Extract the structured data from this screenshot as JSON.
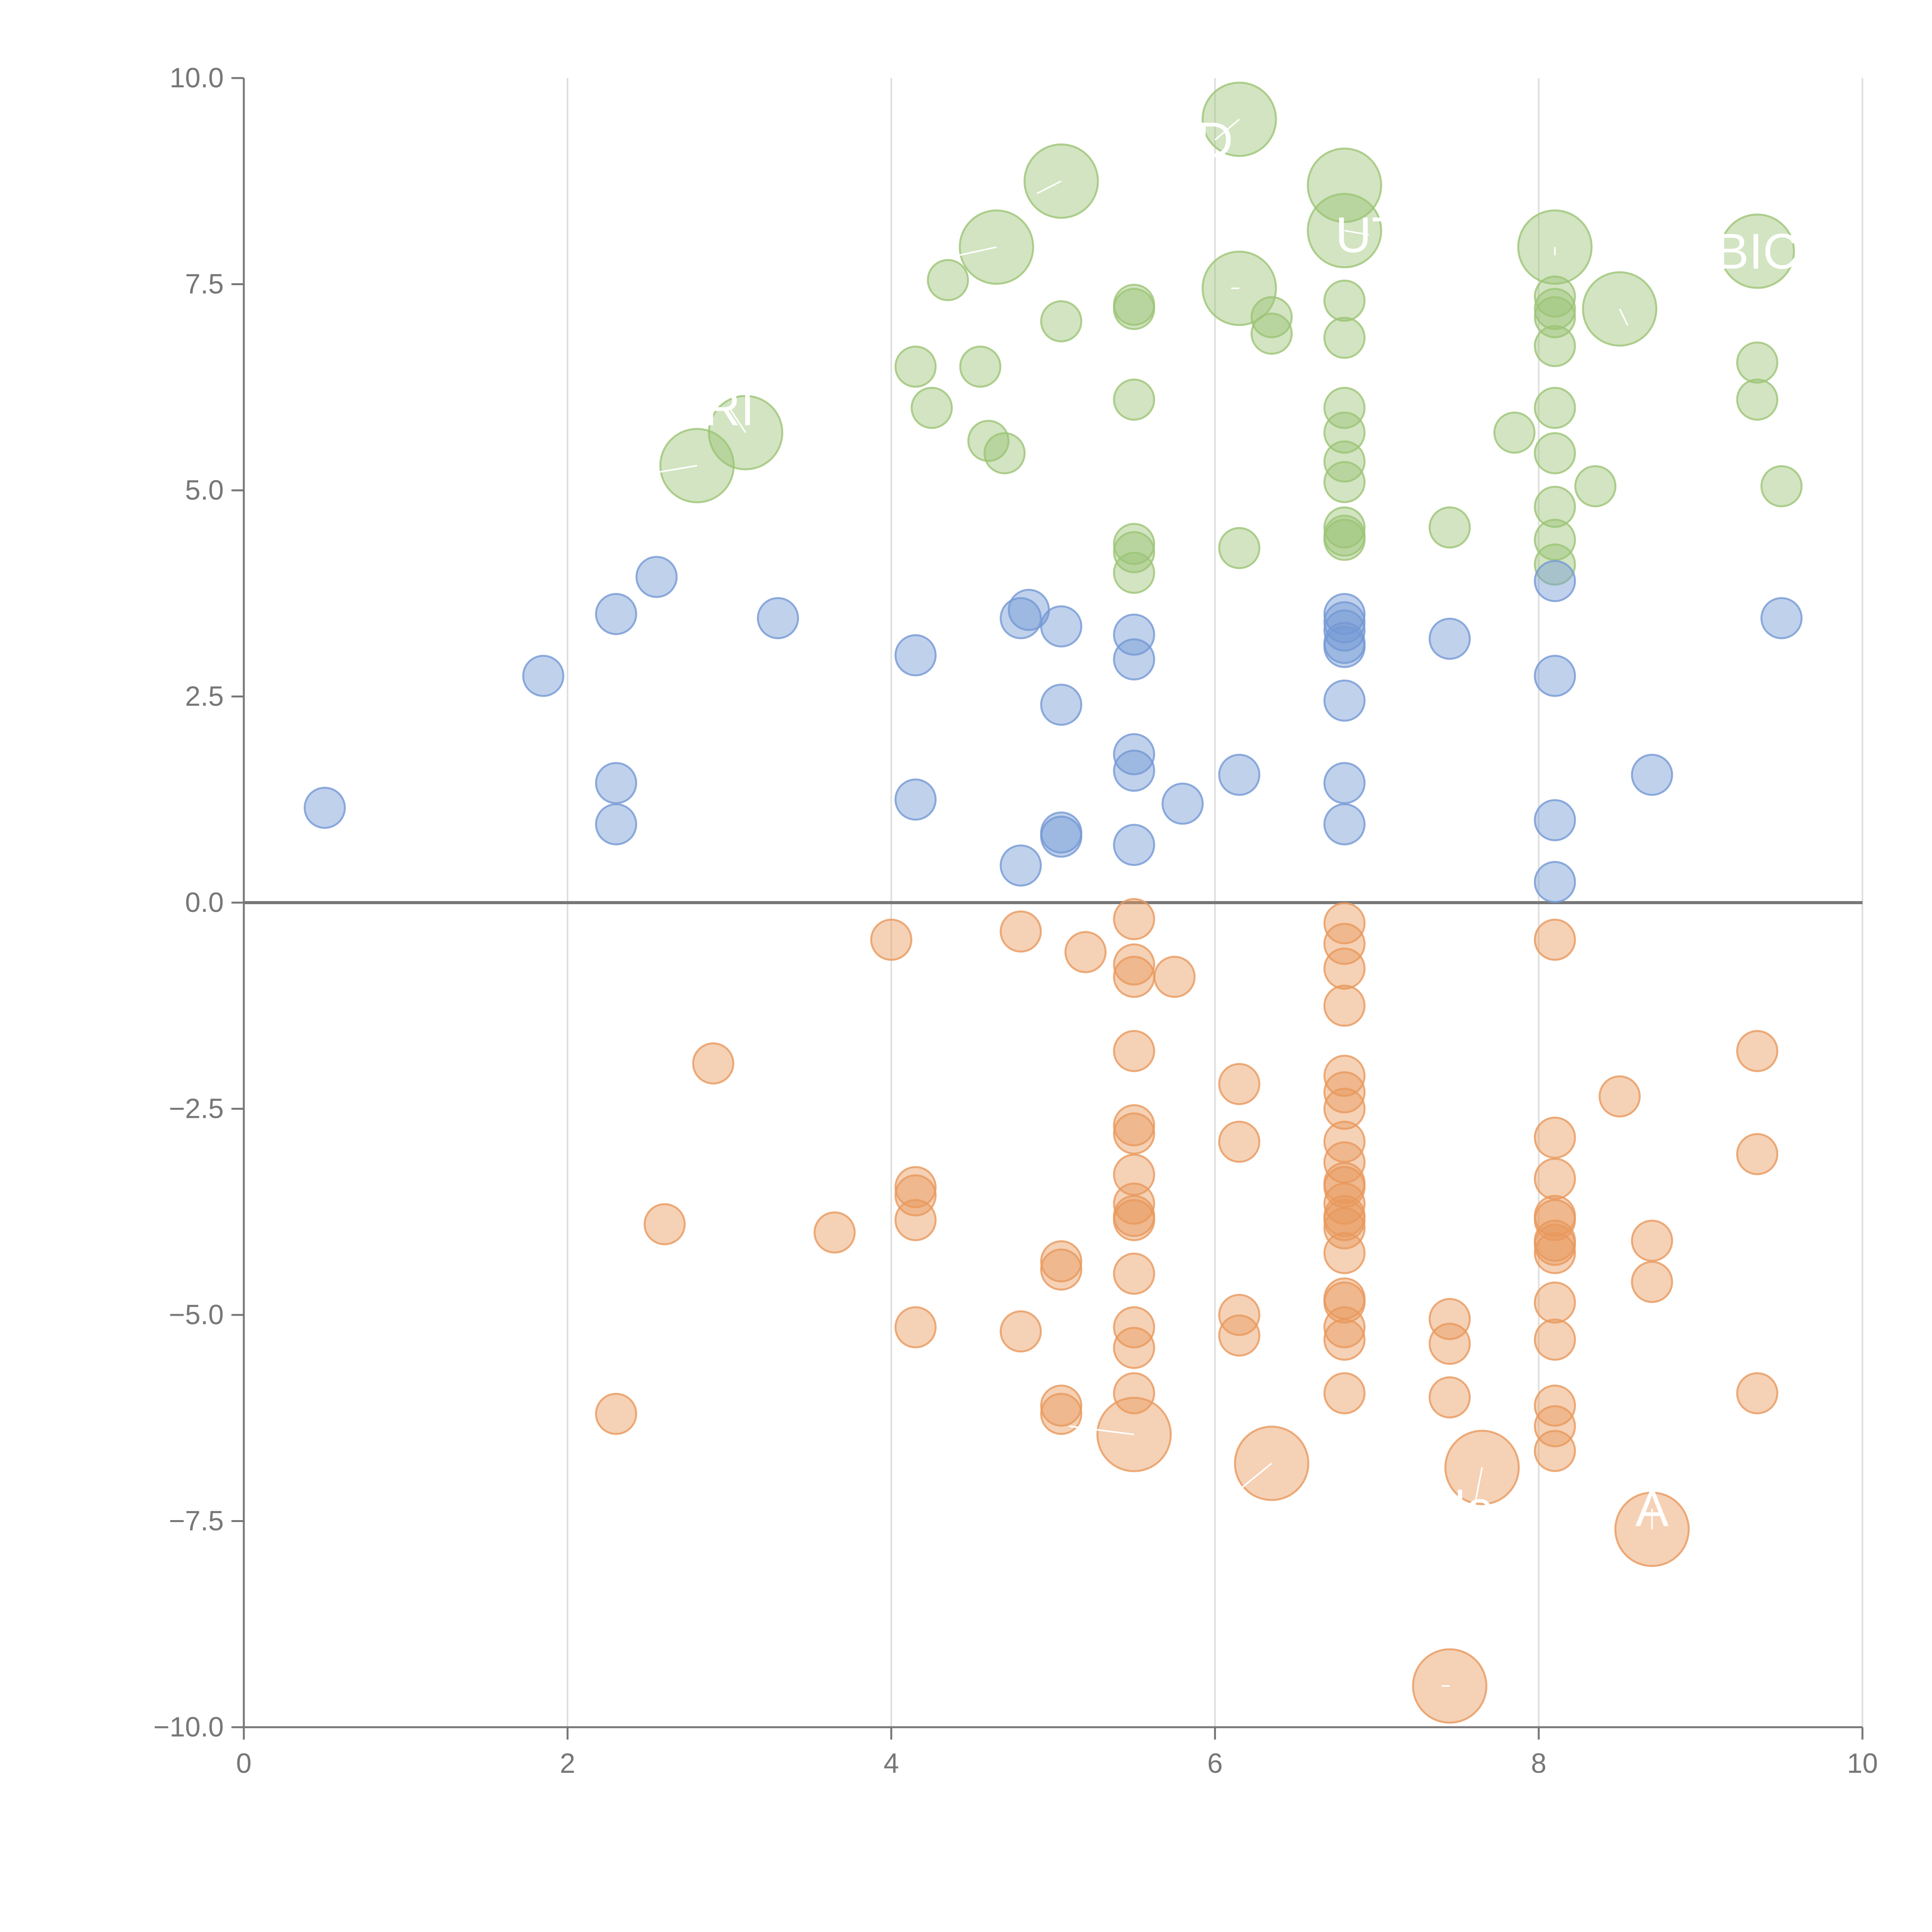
{
  "chart_data": {
    "type": "scatter",
    "title": "",
    "xlabel": "",
    "ylabel": "",
    "xlim": [
      0,
      10
    ],
    "ylim": [
      -10,
      10
    ],
    "x_ticks": [
      "0",
      "2",
      "4",
      "6",
      "8",
      "10"
    ],
    "y_ticks": [
      "10.0",
      "7.5",
      "5.0",
      "2.5",
      "0.0",
      "−2.5",
      "−5.0",
      "−7.5",
      "−10.0"
    ],
    "x_tick_values": [
      0,
      2,
      4,
      6,
      8,
      10
    ],
    "y_tick_values": [
      10,
      7.5,
      5,
      2.5,
      0,
      -2.5,
      -5,
      -7.5,
      -10
    ],
    "x_grid": true,
    "y_grid": false,
    "zero_line": 0,
    "colors": {
      "green": "#9cc476",
      "blue": "#7499d4",
      "orange": "#e8995d",
      "axis": "#777777",
      "grid": "#dddddd",
      "label": "#ffffff"
    },
    "series": [
      {
        "name": "green",
        "color": "#9cc476",
        "points": [
          [
            4.35,
            7.55
          ],
          [
            4.15,
            6.5
          ],
          [
            4.25,
            6.0
          ],
          [
            4.55,
            6.5
          ],
          [
            4.6,
            5.6
          ],
          [
            4.7,
            5.45
          ],
          [
            5.05,
            7.05
          ],
          [
            5.5,
            7.25
          ],
          [
            5.5,
            7.2
          ],
          [
            5.5,
            6.1
          ],
          [
            5.5,
            4.35
          ],
          [
            5.5,
            4.25
          ],
          [
            5.5,
            4.0
          ],
          [
            6.15,
            4.3
          ],
          [
            6.35,
            7.1
          ],
          [
            6.35,
            6.9
          ],
          [
            6.8,
            7.3
          ],
          [
            6.8,
            6.85
          ],
          [
            6.8,
            6.0
          ],
          [
            6.8,
            5.7
          ],
          [
            6.8,
            5.35
          ],
          [
            6.8,
            5.1
          ],
          [
            6.8,
            4.55
          ],
          [
            6.8,
            4.4
          ],
          [
            6.8,
            4.45
          ],
          [
            7.45,
            4.55
          ],
          [
            7.85,
            5.7
          ],
          [
            8.1,
            7.35
          ],
          [
            8.1,
            7.2
          ],
          [
            8.1,
            7.1
          ],
          [
            8.1,
            6.75
          ],
          [
            8.1,
            6.0
          ],
          [
            8.1,
            5.45
          ],
          [
            8.1,
            4.8
          ],
          [
            8.1,
            4.4
          ],
          [
            8.1,
            4.1
          ],
          [
            8.35,
            5.05
          ],
          [
            9.35,
            6.55
          ],
          [
            9.35,
            6.1
          ],
          [
            9.5,
            5.05
          ]
        ]
      },
      {
        "name": "blue",
        "color": "#7499d4",
        "points": [
          [
            0.5,
            1.15
          ],
          [
            1.85,
            2.75
          ],
          [
            2.3,
            3.5
          ],
          [
            2.3,
            1.45
          ],
          [
            2.3,
            0.95
          ],
          [
            2.55,
            3.95
          ],
          [
            3.3,
            3.45
          ],
          [
            4.15,
            3.0
          ],
          [
            4.15,
            1.25
          ],
          [
            4.8,
            3.45
          ],
          [
            4.8,
            0.45
          ],
          [
            4.85,
            3.55
          ],
          [
            5.05,
            3.35
          ],
          [
            5.05,
            2.4
          ],
          [
            5.05,
            0.85
          ],
          [
            5.05,
            0.8
          ],
          [
            5.5,
            3.25
          ],
          [
            5.5,
            2.95
          ],
          [
            5.5,
            1.8
          ],
          [
            5.5,
            1.6
          ],
          [
            5.5,
            0.7
          ],
          [
            5.8,
            1.2
          ],
          [
            6.15,
            1.55
          ],
          [
            6.8,
            3.5
          ],
          [
            6.8,
            3.4
          ],
          [
            6.8,
            3.3
          ],
          [
            6.8,
            3.15
          ],
          [
            6.8,
            3.1
          ],
          [
            6.8,
            2.45
          ],
          [
            6.8,
            1.45
          ],
          [
            6.8,
            0.95
          ],
          [
            7.45,
            3.2
          ],
          [
            8.1,
            3.9
          ],
          [
            8.1,
            2.75
          ],
          [
            8.1,
            1.0
          ],
          [
            8.1,
            0.25
          ],
          [
            8.7,
            1.55
          ],
          [
            9.5,
            3.45
          ]
        ]
      },
      {
        "name": "orange",
        "color": "#e8995d",
        "points": [
          [
            2.3,
            -6.2
          ],
          [
            2.6,
            -3.9
          ],
          [
            2.9,
            -1.95
          ],
          [
            3.65,
            -4.0
          ],
          [
            4.0,
            -0.45
          ],
          [
            4.15,
            -3.45
          ],
          [
            4.15,
            -3.55
          ],
          [
            4.15,
            -3.85
          ],
          [
            4.15,
            -5.15
          ],
          [
            4.8,
            -0.35
          ],
          [
            4.8,
            -5.2
          ],
          [
            5.05,
            -4.35
          ],
          [
            5.05,
            -4.45
          ],
          [
            5.05,
            -6.1
          ],
          [
            5.05,
            -6.2
          ],
          [
            5.2,
            -0.6
          ],
          [
            5.5,
            -0.2
          ],
          [
            5.5,
            -0.75
          ],
          [
            5.5,
            -0.9
          ],
          [
            5.5,
            -1.8
          ],
          [
            5.5,
            -2.7
          ],
          [
            5.5,
            -2.8
          ],
          [
            5.5,
            -3.3
          ],
          [
            5.5,
            -3.65
          ],
          [
            5.5,
            -3.8
          ],
          [
            5.5,
            -3.85
          ],
          [
            5.5,
            -4.5
          ],
          [
            5.5,
            -5.15
          ],
          [
            5.5,
            -5.4
          ],
          [
            5.5,
            -5.95
          ],
          [
            5.75,
            -0.9
          ],
          [
            6.15,
            -2.2
          ],
          [
            6.15,
            -2.9
          ],
          [
            6.15,
            -5.0
          ],
          [
            6.15,
            -5.25
          ],
          [
            6.8,
            -0.25
          ],
          [
            6.8,
            -0.5
          ],
          [
            6.8,
            -0.8
          ],
          [
            6.8,
            -1.25
          ],
          [
            6.8,
            -2.1
          ],
          [
            6.8,
            -2.3
          ],
          [
            6.8,
            -2.5
          ],
          [
            6.8,
            -2.9
          ],
          [
            6.8,
            -3.15
          ],
          [
            6.8,
            -3.4
          ],
          [
            6.8,
            -3.45
          ],
          [
            6.8,
            -3.65
          ],
          [
            6.8,
            -3.8
          ],
          [
            6.8,
            -3.85
          ],
          [
            6.8,
            -3.95
          ],
          [
            6.8,
            -4.25
          ],
          [
            6.8,
            -4.8
          ],
          [
            6.8,
            -4.85
          ],
          [
            6.8,
            -5.15
          ],
          [
            6.8,
            -5.3
          ],
          [
            6.8,
            -5.95
          ],
          [
            7.45,
            -5.05
          ],
          [
            7.45,
            -5.35
          ],
          [
            7.45,
            -6.0
          ],
          [
            8.5,
            -2.35
          ],
          [
            8.1,
            -0.45
          ],
          [
            8.1,
            -2.85
          ],
          [
            8.1,
            -3.35
          ],
          [
            8.1,
            -3.8
          ],
          [
            8.1,
            -3.85
          ],
          [
            8.1,
            -4.1
          ],
          [
            8.1,
            -4.15
          ],
          [
            8.1,
            -4.25
          ],
          [
            8.1,
            -4.85
          ],
          [
            8.1,
            -5.3
          ],
          [
            8.1,
            -6.1
          ],
          [
            8.1,
            -6.35
          ],
          [
            8.1,
            -6.65
          ],
          [
            8.7,
            -4.1
          ],
          [
            8.7,
            -4.6
          ],
          [
            9.35,
            -1.8
          ],
          [
            9.35,
            -3.05
          ],
          [
            9.35,
            -5.95
          ]
        ]
      }
    ],
    "highlighted": [
      {
        "color": "#9cc476",
        "x": 6.15,
        "y": 9.5,
        "label_x": 6.0,
        "label_y": 9.25,
        "label": "D"
      },
      {
        "color": "#9cc476",
        "x": 5.05,
        "y": 8.75,
        "label_x": 4.9,
        "label_y": 8.6,
        "label": ""
      },
      {
        "color": "#9cc476",
        "x": 6.8,
        "y": 8.7,
        "label_x": 6.8,
        "label_y": 8.7,
        "label": ""
      },
      {
        "color": "#9cc476",
        "x": 6.8,
        "y": 8.15,
        "label_x": 6.95,
        "label_y": 8.1,
        "label": "UT"
      },
      {
        "color": "#9cc476",
        "x": 8.1,
        "y": 7.95,
        "label_x": 8.1,
        "label_y": 7.85,
        "label": ""
      },
      {
        "color": "#9cc476",
        "x": 4.65,
        "y": 7.95,
        "label_x": 4.3,
        "label_y": 7.8,
        "label": ""
      },
      {
        "color": "#9cc476",
        "x": 9.35,
        "y": 7.9,
        "label_x": 9.35,
        "label_y": 7.9,
        "label": "BIC"
      },
      {
        "color": "#9cc476",
        "x": 6.15,
        "y": 7.45,
        "label_x": 6.1,
        "label_y": 7.45,
        "label": ""
      },
      {
        "color": "#9cc476",
        "x": 8.5,
        "y": 7.2,
        "label_x": 8.55,
        "label_y": 7.0,
        "label": ""
      },
      {
        "color": "#9cc476",
        "x": 3.1,
        "y": 5.7,
        "label_x": 3.0,
        "label_y": 6.0,
        "label": "RI"
      },
      {
        "color": "#9cc476",
        "x": 2.8,
        "y": 5.3,
        "label_x": 2.5,
        "label_y": 5.2,
        "label": ""
      },
      {
        "color": "#e8995d",
        "x": 5.5,
        "y": -6.45,
        "label_x": 5.1,
        "label_y": -6.35,
        "label": ""
      },
      {
        "color": "#e8995d",
        "x": 6.35,
        "y": -6.8,
        "label_x": 6.1,
        "label_y": -7.2,
        "label": ""
      },
      {
        "color": "#e8995d",
        "x": 7.65,
        "y": -6.85,
        "label_x": 7.6,
        "label_y": -7.35,
        "label": "lo"
      },
      {
        "color": "#e8995d",
        "x": 8.7,
        "y": -7.6,
        "label_x": 8.7,
        "label_y": -7.35,
        "label": "A"
      },
      {
        "color": "#e8995d",
        "x": 7.45,
        "y": -9.5,
        "label_x": 7.4,
        "label_y": -9.5,
        "label": ""
      }
    ]
  }
}
